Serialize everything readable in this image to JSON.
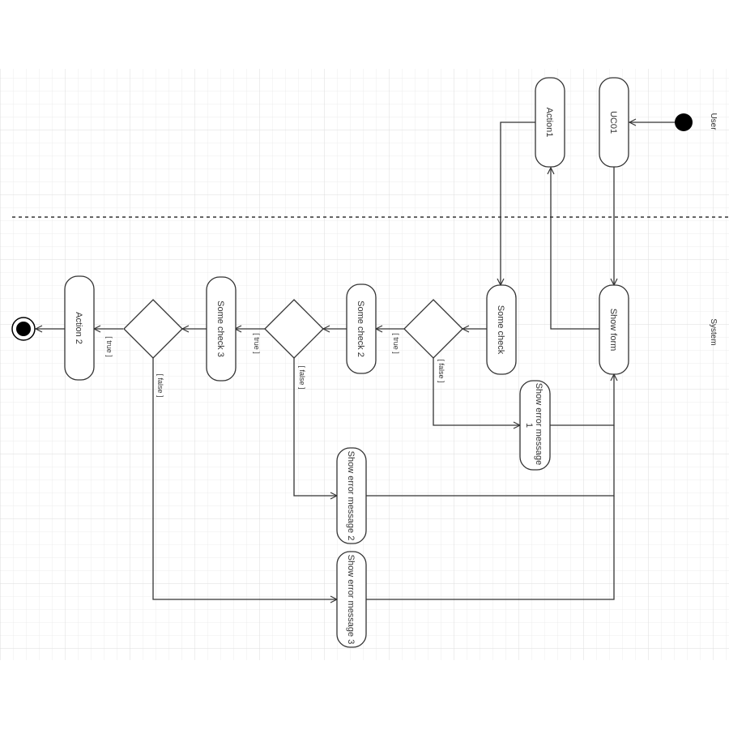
{
  "lanes": {
    "user": "User",
    "system": "System"
  },
  "nodes": {
    "uc01": "UC01",
    "action1": "Action1",
    "show_form": "Show form",
    "some_check": "Some check",
    "some_check_2": "Some check 2",
    "some_check_3": "Some check 3",
    "action2": "Action 2",
    "error1_line1": "Show error message",
    "error1_line2": "1",
    "error2": "Show error message 2",
    "error3": "Show error message 3"
  },
  "guards": {
    "true1": "[ true ]",
    "false1": "[ false ]",
    "true2": "[ true ]",
    "false2": "[ false ]",
    "true3": "[ true ]",
    "false3": "[ false ]"
  },
  "colors": {
    "grid_minor": "#ececec",
    "grid_major": "#dcdcdc",
    "stroke": "#333333",
    "node_fill": "#ffffff"
  }
}
